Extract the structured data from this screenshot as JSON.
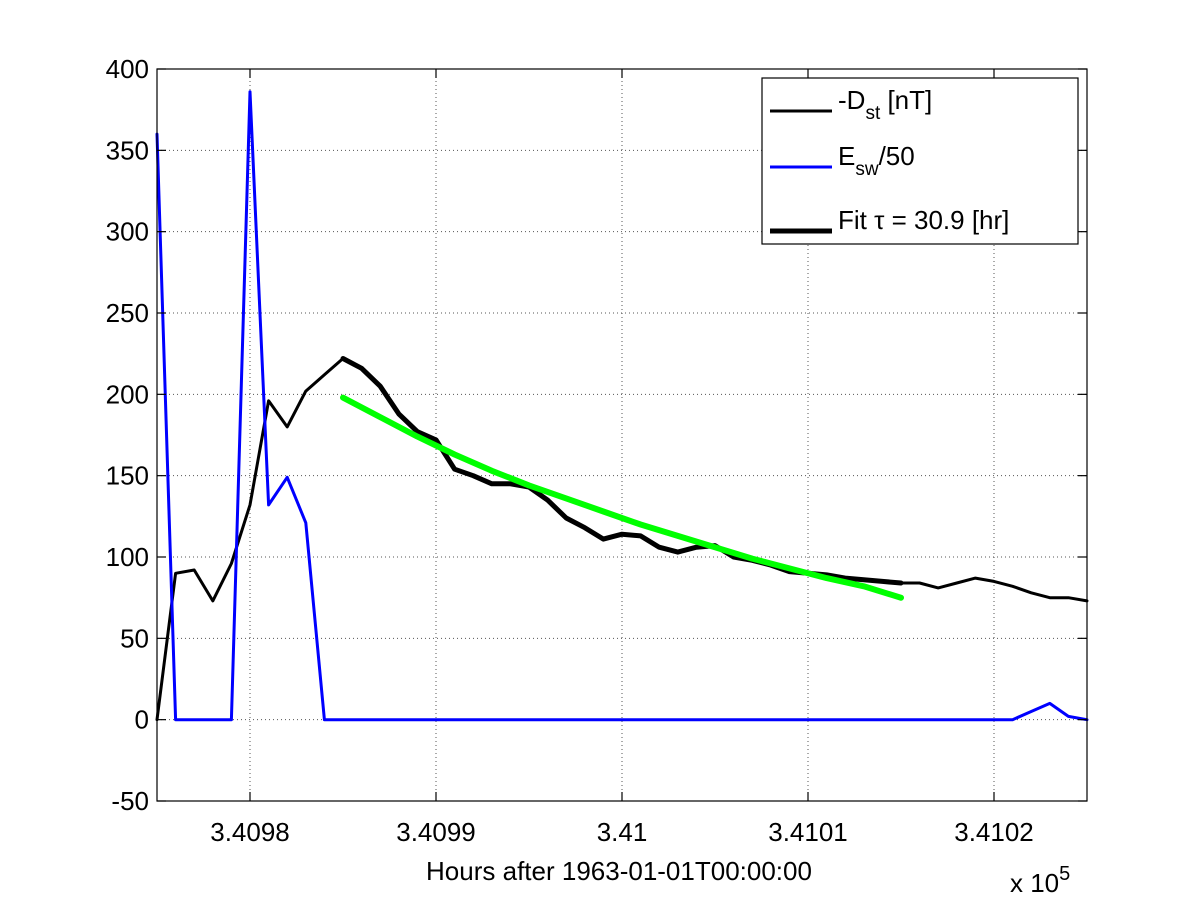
{
  "chart_data": {
    "type": "line",
    "xlabel": "Hours after 1963-01-01T00:00:00",
    "x_exponent_label": "x 10",
    "x_exponent_power": "5",
    "xlim": [
      340975,
      341025
    ],
    "ylim": [
      -50,
      400
    ],
    "grid": true,
    "legend_position": "top-right",
    "x_ticks": [
      {
        "value": 340980,
        "label": "3.4098"
      },
      {
        "value": 340990,
        "label": "3.4099"
      },
      {
        "value": 341000,
        "label": "3.41"
      },
      {
        "value": 341010,
        "label": "3.4101"
      },
      {
        "value": 341020,
        "label": "3.4102"
      }
    ],
    "y_ticks": [
      {
        "value": -50,
        "label": "-50"
      },
      {
        "value": 0,
        "label": "0"
      },
      {
        "value": 50,
        "label": "50"
      },
      {
        "value": 100,
        "label": "100"
      },
      {
        "value": 150,
        "label": "150"
      },
      {
        "value": 200,
        "label": "200"
      },
      {
        "value": 250,
        "label": "250"
      },
      {
        "value": 300,
        "label": "300"
      },
      {
        "value": 350,
        "label": "350"
      },
      {
        "value": 400,
        "label": "400"
      }
    ],
    "legend": [
      {
        "main": "-D",
        "sub": "st",
        "rest": " [nT]",
        "color": "#000000",
        "width": 3
      },
      {
        "main": "E",
        "sub": "sw",
        "rest": "/50",
        "color": "#0000ff",
        "width": 3
      },
      {
        "main": "Fit τ = 30.9 [hr]",
        "sub": "",
        "rest": "",
        "color": "#000000",
        "width": 5
      }
    ],
    "series": [
      {
        "key": "dst",
        "color": "#000000",
        "width": 3,
        "x": [
          340975,
          340976,
          340977,
          340978,
          340979,
          340980,
          340981,
          340982,
          340983,
          340984,
          340985,
          340986,
          340987,
          340988,
          340989,
          340990,
          340991,
          340992,
          340993,
          340994,
          340995,
          340996,
          340997,
          340998,
          340999,
          341000,
          341001,
          341002,
          341003,
          341004,
          341005,
          341006,
          341007,
          341008,
          341009,
          341010,
          341011,
          341012,
          341013,
          341014,
          341015,
          341016,
          341017,
          341018,
          341019,
          341020,
          341021,
          341022,
          341023,
          341024,
          341025
        ],
        "y": [
          0,
          90,
          92,
          73,
          96,
          132,
          196,
          180,
          202,
          212,
          222,
          216,
          205,
          188,
          177,
          172,
          154,
          150,
          145,
          145,
          143,
          135,
          124,
          118,
          111,
          114,
          113,
          106,
          103,
          106,
          107,
          100,
          98,
          95,
          91,
          90,
          89,
          87,
          86,
          85,
          84,
          84,
          81,
          84,
          87,
          85,
          82,
          78,
          75,
          75,
          73
        ]
      },
      {
        "key": "dst_fit_region",
        "color": "#000000",
        "width": 5,
        "x": [
          340985,
          340986,
          340987,
          340988,
          340989,
          340990,
          340991,
          340992,
          340993,
          340994,
          340995,
          340996,
          340997,
          340998,
          340999,
          341000,
          341001,
          341002,
          341003,
          341004,
          341005,
          341006,
          341007,
          341008,
          341009,
          341010,
          341011,
          341012,
          341013,
          341014,
          341015
        ],
        "y": [
          222,
          216,
          205,
          188,
          177,
          172,
          154,
          150,
          145,
          145,
          143,
          135,
          124,
          118,
          111,
          114,
          113,
          106,
          103,
          106,
          107,
          100,
          98,
          95,
          91,
          90,
          89,
          87,
          86,
          85,
          84
        ]
      },
      {
        "key": "esw",
        "color": "#0000ff",
        "width": 3,
        "x": [
          340975,
          340976,
          340977,
          340978,
          340979,
          340980,
          340981,
          340982,
          340983,
          340984,
          340985,
          340990,
          341000,
          341010,
          341020,
          341021,
          341022,
          341023,
          341024,
          341025
        ],
        "y": [
          360,
          0,
          0,
          0,
          0,
          386,
          132,
          149,
          121,
          0,
          0,
          0,
          0,
          0,
          0,
          0,
          5,
          10,
          2,
          0
        ]
      },
      {
        "key": "fit",
        "color": "#00ff00",
        "width": 6,
        "x": [
          340985,
          340987,
          340989,
          340991,
          340993,
          340995,
          340997,
          340999,
          341001,
          341003,
          341005,
          341007,
          341009,
          341011,
          341013,
          341015
        ],
        "y": [
          198,
          186,
          174,
          163,
          153,
          144,
          136,
          128,
          120,
          113,
          106,
          99,
          93,
          87,
          82,
          75
        ]
      }
    ]
  }
}
